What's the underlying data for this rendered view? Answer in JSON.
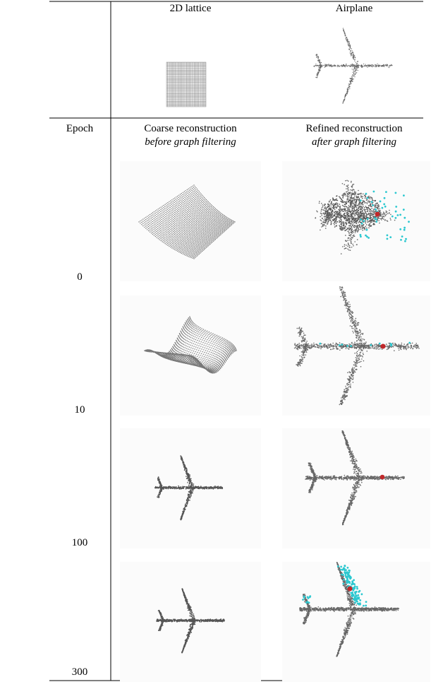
{
  "header": {
    "columns": [
      "2D lattice",
      "Airplane"
    ]
  },
  "subheader": {
    "epoch": "Epoch",
    "coarse": {
      "title": "Coarse reconstruction",
      "subtitle": "before graph filtering"
    },
    "refined": {
      "title": "Refined reconstruction",
      "subtitle": "after graph filtering"
    }
  },
  "epochs": [
    "0",
    "10",
    "100",
    "300"
  ]
}
